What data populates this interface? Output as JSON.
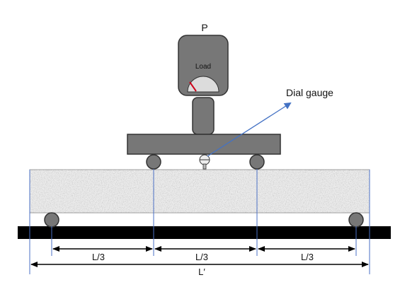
{
  "diagram": {
    "load_symbol": "P",
    "gauge_text": "Load",
    "dial_gauge_label": "Dial gauge",
    "dimensions": {
      "third_1": "L/3",
      "third_2": "L/3",
      "third_3": "L/3",
      "span": "L′"
    }
  },
  "colors": {
    "machine": "#777777",
    "machine_stroke": "#333333",
    "beam_fill": "#e9e9e9",
    "base": "#000000",
    "arrow": "#4472c4",
    "guide_line": "#4a6fc4",
    "needle": "#d0021b"
  }
}
